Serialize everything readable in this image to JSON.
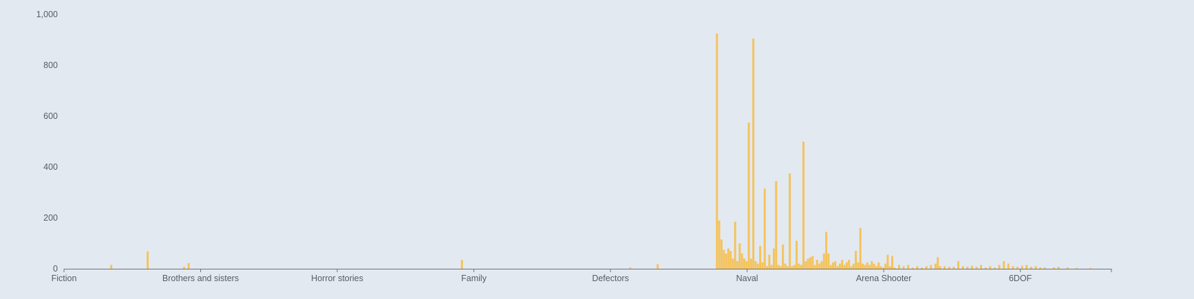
{
  "colors": {
    "background": "#e3e9f1",
    "bar": "#f5c35a",
    "axis": "#6e7079",
    "label": "#555b66"
  },
  "chart_data": {
    "type": "bar",
    "title": "",
    "xlabel": "",
    "ylabel": "",
    "ylim": [
      0,
      1000
    ],
    "yticks": [
      0,
      200,
      400,
      600,
      800,
      1000
    ],
    "ytick_labels": [
      "0",
      "200",
      "400",
      "600",
      "800",
      "1,000"
    ],
    "grid": false,
    "legend": "none",
    "num_categories": 230,
    "xtick_labels": [
      {
        "label": "Fiction",
        "index": 0
      },
      {
        "label": "Brothers and sisters",
        "index": 30
      },
      {
        "label": "Horror stories",
        "index": 60
      },
      {
        "label": "Family",
        "index": 90
      },
      {
        "label": "Defectors",
        "index": 120
      },
      {
        "label": "Naval",
        "index": 150
      },
      {
        "label": "Arena Shooter",
        "index": 180
      },
      {
        "label": "6DOF",
        "index": 210
      }
    ],
    "bars": [
      {
        "i": 10,
        "v": 15
      },
      {
        "i": 18,
        "v": 68
      },
      {
        "i": 26,
        "v": 8
      },
      {
        "i": 27,
        "v": 22
      },
      {
        "i": 87,
        "v": 35
      },
      {
        "i": 124,
        "v": 5
      },
      {
        "i": 130,
        "v": 18
      },
      {
        "i": 143,
        "v": 925
      },
      {
        "i": 143.5,
        "v": 190
      },
      {
        "i": 144,
        "v": 115
      },
      {
        "i": 144.5,
        "v": 75
      },
      {
        "i": 145,
        "v": 60
      },
      {
        "i": 145.5,
        "v": 80
      },
      {
        "i": 146,
        "v": 70
      },
      {
        "i": 146.5,
        "v": 40
      },
      {
        "i": 147,
        "v": 185
      },
      {
        "i": 147.5,
        "v": 30
      },
      {
        "i": 148,
        "v": 100
      },
      {
        "i": 148.5,
        "v": 60
      },
      {
        "i": 149,
        "v": 40
      },
      {
        "i": 149.5,
        "v": 30
      },
      {
        "i": 150,
        "v": 575
      },
      {
        "i": 150.5,
        "v": 40
      },
      {
        "i": 151,
        "v": 905
      },
      {
        "i": 151.5,
        "v": 30
      },
      {
        "i": 152,
        "v": 20
      },
      {
        "i": 152.5,
        "v": 90
      },
      {
        "i": 153,
        "v": 25
      },
      {
        "i": 153.5,
        "v": 315
      },
      {
        "i": 154,
        "v": 10
      },
      {
        "i": 154.5,
        "v": 55
      },
      {
        "i": 155,
        "v": 15
      },
      {
        "i": 155.5,
        "v": 80
      },
      {
        "i": 156,
        "v": 345
      },
      {
        "i": 156.5,
        "v": 15
      },
      {
        "i": 157,
        "v": 10
      },
      {
        "i": 157.5,
        "v": 95
      },
      {
        "i": 158,
        "v": 20
      },
      {
        "i": 158.5,
        "v": 10
      },
      {
        "i": 159,
        "v": 375
      },
      {
        "i": 159.5,
        "v": 10
      },
      {
        "i": 160,
        "v": 15
      },
      {
        "i": 160.5,
        "v": 110
      },
      {
        "i": 161,
        "v": 20
      },
      {
        "i": 161.5,
        "v": 15
      },
      {
        "i": 162,
        "v": 500
      },
      {
        "i": 162.5,
        "v": 30
      },
      {
        "i": 163,
        "v": 40
      },
      {
        "i": 163.5,
        "v": 45
      },
      {
        "i": 164,
        "v": 50
      },
      {
        "i": 164.5,
        "v": 15
      },
      {
        "i": 165,
        "v": 35
      },
      {
        "i": 165.5,
        "v": 20
      },
      {
        "i": 166,
        "v": 30
      },
      {
        "i": 166.5,
        "v": 60
      },
      {
        "i": 167,
        "v": 145
      },
      {
        "i": 167.5,
        "v": 60
      },
      {
        "i": 168,
        "v": 15
      },
      {
        "i": 168.5,
        "v": 25
      },
      {
        "i": 169,
        "v": 30
      },
      {
        "i": 169.5,
        "v": 10
      },
      {
        "i": 170,
        "v": 20
      },
      {
        "i": 170.5,
        "v": 35
      },
      {
        "i": 171,
        "v": 15
      },
      {
        "i": 171.5,
        "v": 25
      },
      {
        "i": 172,
        "v": 35
      },
      {
        "i": 172.5,
        "v": 10
      },
      {
        "i": 173,
        "v": 20
      },
      {
        "i": 173.5,
        "v": 70
      },
      {
        "i": 174,
        "v": 25
      },
      {
        "i": 174.5,
        "v": 160
      },
      {
        "i": 175,
        "v": 20
      },
      {
        "i": 175.5,
        "v": 15
      },
      {
        "i": 176,
        "v": 25
      },
      {
        "i": 176.5,
        "v": 15
      },
      {
        "i": 177,
        "v": 30
      },
      {
        "i": 177.5,
        "v": 20
      },
      {
        "i": 178,
        "v": 10
      },
      {
        "i": 178.5,
        "v": 25
      },
      {
        "i": 179,
        "v": 10
      },
      {
        "i": 179.5,
        "v": 5
      },
      {
        "i": 180,
        "v": 20
      },
      {
        "i": 180.5,
        "v": 55
      },
      {
        "i": 181,
        "v": 10
      },
      {
        "i": 181.5,
        "v": 50
      },
      {
        "i": 182,
        "v": 5
      },
      {
        "i": 183,
        "v": 15
      },
      {
        "i": 184,
        "v": 10
      },
      {
        "i": 185,
        "v": 15
      },
      {
        "i": 186,
        "v": 5
      },
      {
        "i": 187,
        "v": 10
      },
      {
        "i": 188,
        "v": 5
      },
      {
        "i": 189,
        "v": 10
      },
      {
        "i": 190,
        "v": 15
      },
      {
        "i": 191,
        "v": 20
      },
      {
        "i": 191.5,
        "v": 45
      },
      {
        "i": 192,
        "v": 10
      },
      {
        "i": 193,
        "v": 10
      },
      {
        "i": 194,
        "v": 8
      },
      {
        "i": 195,
        "v": 8
      },
      {
        "i": 196,
        "v": 30
      },
      {
        "i": 197,
        "v": 10
      },
      {
        "i": 198,
        "v": 8
      },
      {
        "i": 199,
        "v": 12
      },
      {
        "i": 200,
        "v": 8
      },
      {
        "i": 201,
        "v": 15
      },
      {
        "i": 202,
        "v": 5
      },
      {
        "i": 203,
        "v": 10
      },
      {
        "i": 204,
        "v": 5
      },
      {
        "i": 205,
        "v": 15
      },
      {
        "i": 206,
        "v": 30
      },
      {
        "i": 207,
        "v": 20
      },
      {
        "i": 208,
        "v": 10
      },
      {
        "i": 209,
        "v": 8
      },
      {
        "i": 210,
        "v": 12
      },
      {
        "i": 211,
        "v": 15
      },
      {
        "i": 212,
        "v": 8
      },
      {
        "i": 213,
        "v": 10
      },
      {
        "i": 214,
        "v": 5
      },
      {
        "i": 215,
        "v": 5
      },
      {
        "i": 217,
        "v": 5
      },
      {
        "i": 218,
        "v": 8
      },
      {
        "i": 220,
        "v": 5
      },
      {
        "i": 222,
        "v": 3
      },
      {
        "i": 225,
        "v": 3
      }
    ]
  }
}
